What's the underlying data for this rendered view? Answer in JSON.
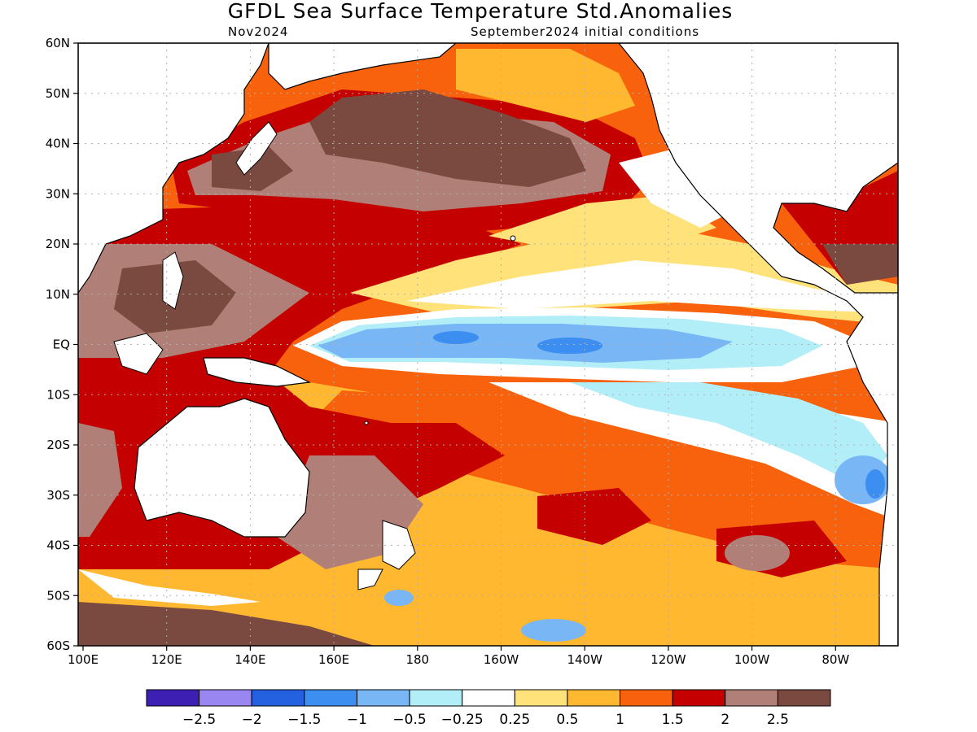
{
  "title": "GFDL Sea Surface Temperature Std.Anomalies",
  "forecast_month": "Nov2024",
  "initial_conditions": "September2024 initial conditions",
  "lat_labels": [
    "60N",
    "50N",
    "40N",
    "30N",
    "20N",
    "10N",
    "EQ",
    "10S",
    "20S",
    "30S",
    "40S",
    "50S",
    "60S"
  ],
  "lon_labels": [
    "100E",
    "120E",
    "140E",
    "160E",
    "180",
    "160W",
    "140W",
    "120W",
    "100W",
    "80W"
  ],
  "colorbar": {
    "colors": [
      "#3e1fb3",
      "#9a86f0",
      "#2361e0",
      "#3c8ef0",
      "#78b6f5",
      "#b2eef8",
      "#ffffff",
      "#ffe27a",
      "#ffb830",
      "#f8620c",
      "#c40000",
      "#b08078",
      "#7a4a40"
    ],
    "labels": [
      "−2.5",
      "−2",
      "−1.5",
      "−1",
      "−0.5",
      "−0.25",
      "0.25",
      "0.5",
      "1",
      "1.5",
      "2",
      "2.5"
    ]
  },
  "colors": {
    "land": "#ffffff",
    "coast": "#000000",
    "grid": "#b0b0b0"
  }
}
